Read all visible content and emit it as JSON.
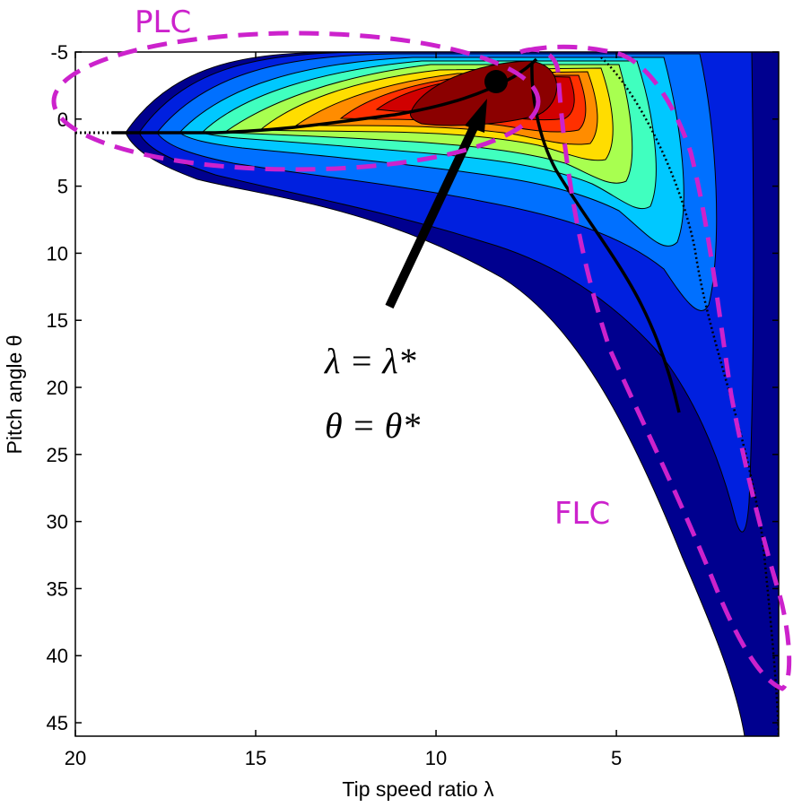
{
  "chart_data": {
    "type": "contour",
    "xlabel": "Tip speed ratio λ",
    "ylabel": "Pitch angle θ",
    "xlim": [
      20,
      0.5
    ],
    "ylim": [
      -5,
      46
    ],
    "x_ticks": [
      "20",
      "15",
      "10",
      "5"
    ],
    "y_ticks": [
      "-5",
      "0",
      "5",
      "10",
      "15",
      "20",
      "25",
      "30",
      "35",
      "40",
      "45"
    ],
    "x_tick_values": [
      20,
      15,
      10,
      5
    ],
    "y_tick_values": [
      -5,
      0,
      5,
      10,
      15,
      20,
      25,
      30,
      35,
      40,
      45
    ],
    "x_axis_reversed": true,
    "y_axis_reversed": true,
    "colormap": [
      "#00008f",
      "#0020df",
      "#0070ff",
      "#00c8ff",
      "#40ffbf",
      "#a8ff50",
      "#ffdd00",
      "#ff8c00",
      "#ff3000",
      "#d00000",
      "#8b0000"
    ],
    "contour_levels": 11,
    "optimum_point": {
      "lambda": 8.5,
      "theta": -3
    },
    "annotations": {
      "plc": "PLC",
      "flc": "FLC",
      "optimum_line1": "λ = λ*",
      "optimum_line2": "θ = θ*"
    },
    "region_color": "#cc22cc",
    "grid": false
  }
}
